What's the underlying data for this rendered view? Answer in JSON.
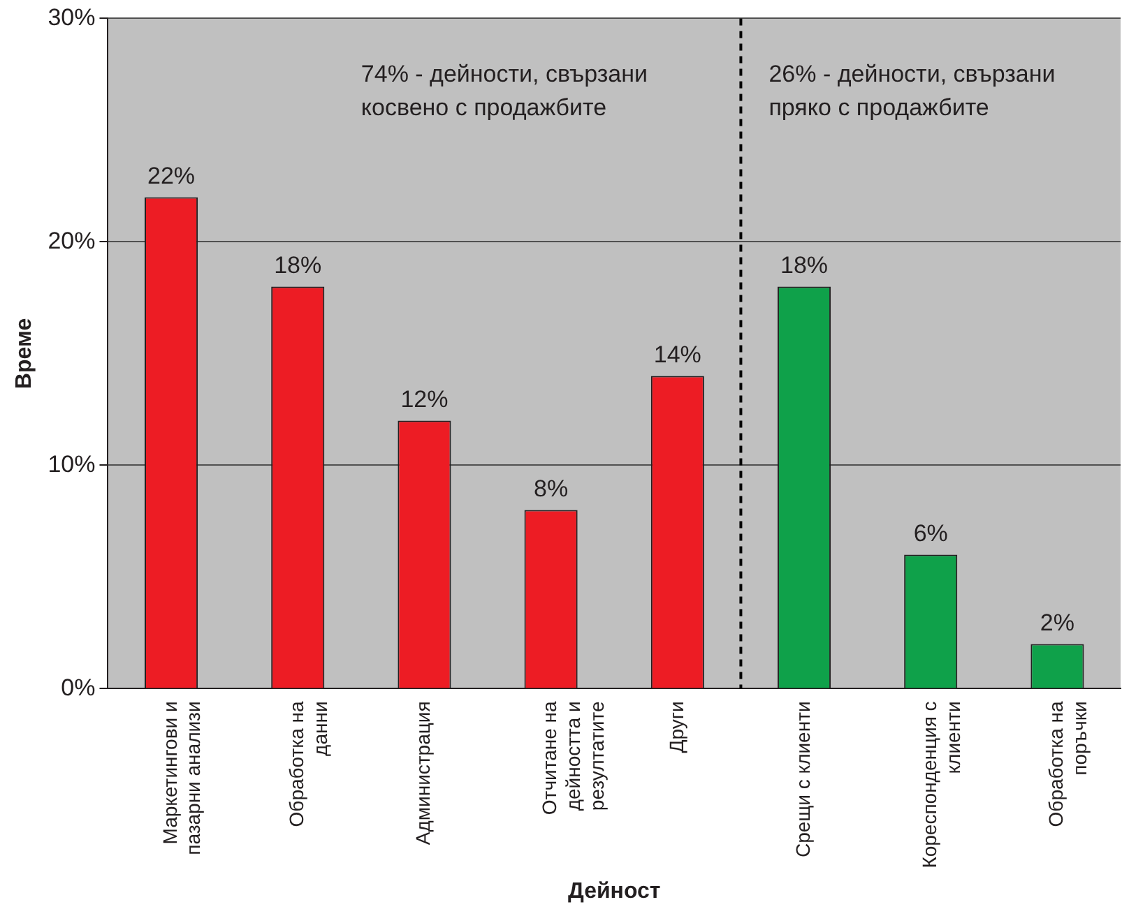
{
  "chart_data": {
    "type": "bar",
    "xlabel": "Дейност",
    "ylabel": "Време",
    "categories": [
      "Маркетингови и пазарни анализи",
      "Обработка на данни",
      "Администрация",
      "Отчитане на дейността и резултатите",
      "Други",
      "Срещи с клиенти",
      "Кореспонденция с клиенти",
      "Обработка на поръчки"
    ],
    "values": [
      22,
      18,
      12,
      8,
      14,
      18,
      6,
      2
    ],
    "colors": [
      "#ed1c24",
      "#ed1c24",
      "#ed1c24",
      "#ed1c24",
      "#ed1c24",
      "#0fa14a",
      "#0fa14a",
      "#0fa14a"
    ],
    "value_labels": [
      "22%",
      "18%",
      "12%",
      "8%",
      "14%",
      "18%",
      "6%",
      "2%"
    ],
    "ylim": [
      0,
      30
    ],
    "yticks": [
      {
        "value": 0,
        "label": "0%"
      },
      {
        "value": 10,
        "label": "10%"
      },
      {
        "value": 20,
        "label": "20%"
      },
      {
        "value": 30,
        "label": "30%"
      }
    ],
    "grid": "y",
    "ref_lines": [
      {
        "axis": "x",
        "value": "Други",
        "color": "#000000",
        "line_style": "dashed"
      }
    ],
    "annotations": [
      "74% - дейности, свързани косвено с продажбите",
      "26% - дейности, свързани пряко с продажбите"
    ]
  }
}
